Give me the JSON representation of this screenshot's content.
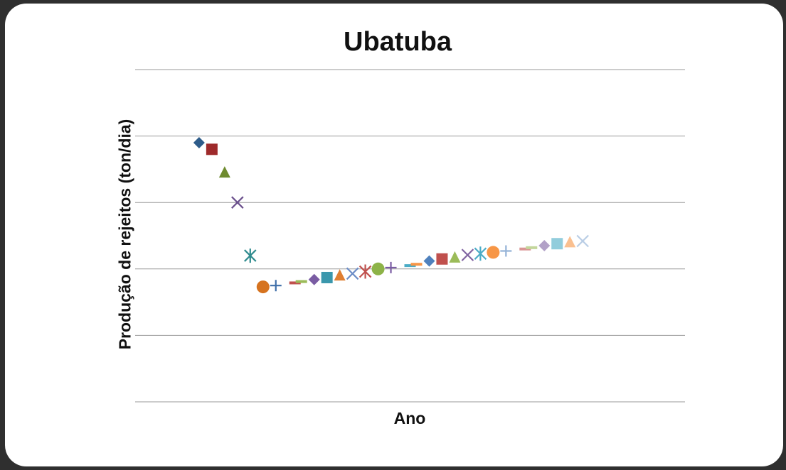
{
  "chart_data": {
    "type": "scatter",
    "title": "Ubatuba",
    "xlabel": "Ano",
    "ylabel": "Produção de rejeitos (ton/dia)",
    "grid": true,
    "legend": "none",
    "ylim": [
      0,
      5
    ],
    "ygrid": [
      0,
      1,
      2,
      3,
      4,
      5
    ],
    "xlim": [
      0,
      43
    ],
    "points": [
      {
        "x": 5,
        "y": 3.9,
        "marker": "diamond",
        "color": "#2e5c8a"
      },
      {
        "x": 6,
        "y": 3.8,
        "marker": "square",
        "color": "#9e2a2b"
      },
      {
        "x": 7,
        "y": 3.45,
        "marker": "triangle",
        "color": "#6e8b2f"
      },
      {
        "x": 8,
        "y": 3.0,
        "marker": "x",
        "color": "#6a4f8c"
      },
      {
        "x": 9,
        "y": 2.2,
        "marker": "star",
        "color": "#2f8b8e"
      },
      {
        "x": 10,
        "y": 1.73,
        "marker": "circle",
        "color": "#d6731f"
      },
      {
        "x": 11,
        "y": 1.75,
        "marker": "plus",
        "color": "#3e6ea8"
      },
      {
        "x": 12.5,
        "y": 1.79,
        "marker": "dash",
        "color": "#c0504d"
      },
      {
        "x": 13,
        "y": 1.81,
        "marker": "dash",
        "color": "#9bbb59"
      },
      {
        "x": 14,
        "y": 1.84,
        "marker": "diamond",
        "color": "#7a5ca3"
      },
      {
        "x": 15,
        "y": 1.87,
        "marker": "square",
        "color": "#3a97ac"
      },
      {
        "x": 16,
        "y": 1.9,
        "marker": "triangle",
        "color": "#e07f32"
      },
      {
        "x": 17,
        "y": 1.93,
        "marker": "x",
        "color": "#6b8cc7"
      },
      {
        "x": 18,
        "y": 1.96,
        "marker": "star",
        "color": "#c0504d"
      },
      {
        "x": 19,
        "y": 2.0,
        "marker": "circle",
        "color": "#8db348"
      },
      {
        "x": 20,
        "y": 2.02,
        "marker": "plus",
        "color": "#7a5ca3"
      },
      {
        "x": 21.5,
        "y": 2.05,
        "marker": "dash",
        "color": "#4bacc6"
      },
      {
        "x": 22,
        "y": 2.07,
        "marker": "dash",
        "color": "#f79646"
      },
      {
        "x": 23,
        "y": 2.12,
        "marker": "diamond",
        "color": "#4f81bd"
      },
      {
        "x": 24,
        "y": 2.15,
        "marker": "square",
        "color": "#c0504d"
      },
      {
        "x": 25,
        "y": 2.17,
        "marker": "triangle",
        "color": "#9bbb59"
      },
      {
        "x": 26,
        "y": 2.21,
        "marker": "x",
        "color": "#8064a2"
      },
      {
        "x": 27,
        "y": 2.23,
        "marker": "star",
        "color": "#4bacc6"
      },
      {
        "x": 28,
        "y": 2.25,
        "marker": "circle",
        "color": "#f79646"
      },
      {
        "x": 29,
        "y": 2.27,
        "marker": "plus",
        "color": "#95b3d7"
      },
      {
        "x": 30.5,
        "y": 2.3,
        "marker": "dash",
        "color": "#d99694"
      },
      {
        "x": 31,
        "y": 2.32,
        "marker": "dash",
        "color": "#c3d69b"
      },
      {
        "x": 32,
        "y": 2.35,
        "marker": "diamond",
        "color": "#b2a1c7"
      },
      {
        "x": 33,
        "y": 2.38,
        "marker": "square",
        "color": "#92cddc"
      },
      {
        "x": 34,
        "y": 2.4,
        "marker": "triangle",
        "color": "#fac090"
      },
      {
        "x": 35,
        "y": 2.42,
        "marker": "x",
        "color": "#b9cde5"
      }
    ]
  }
}
